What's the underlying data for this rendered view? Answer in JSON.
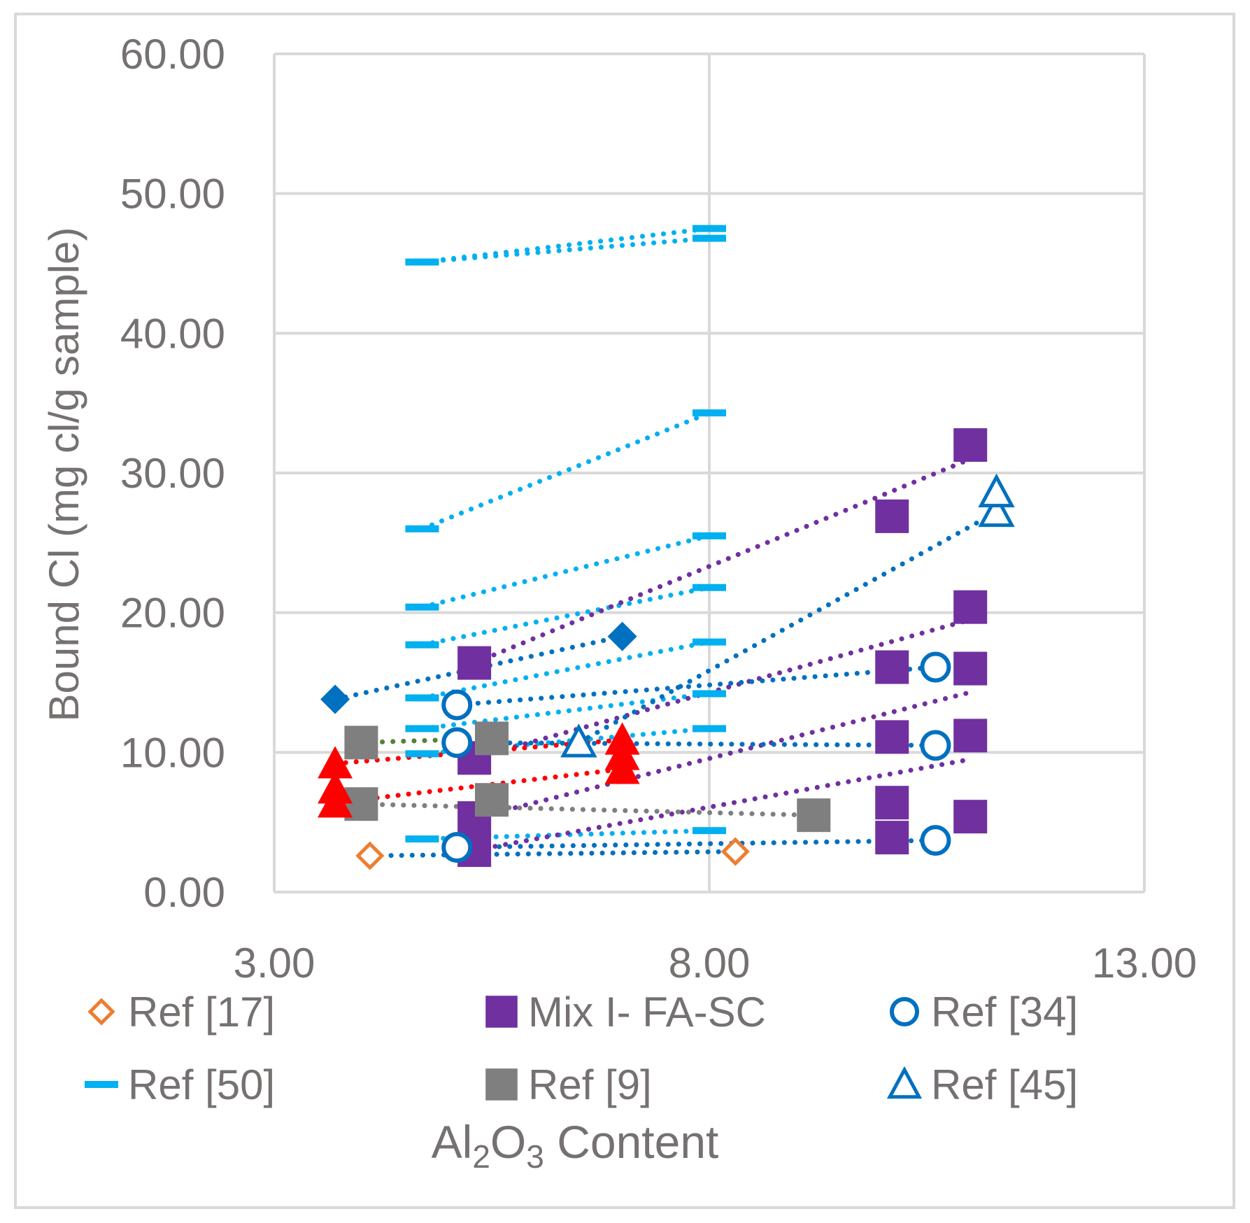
{
  "chart_data": {
    "type": "scatter",
    "title": "",
    "xlabel": "Al2O3 Content",
    "xlabel_parts": {
      "base1": "Al",
      "sub1": "2",
      "base2": "O",
      "sub2": "3",
      "rest": " Content"
    },
    "ylabel": "Bound Cl (mg cl/g sample)",
    "xlim": [
      3,
      13
    ],
    "ylim": [
      0,
      60
    ],
    "xticks": [
      3,
      8,
      13
    ],
    "xtick_labels": [
      "3.00",
      "8.00",
      "13.00"
    ],
    "yticks": [
      0,
      10,
      20,
      30,
      40,
      50,
      60
    ],
    "ytick_labels": [
      "0.00",
      "10.00",
      "20.00",
      "30.00",
      "40.00",
      "50.00",
      "60.00"
    ],
    "grid": true,
    "legend_position": "bottom",
    "legend": [
      {
        "label": "Ref [17]",
        "marker": "diamond-open",
        "color": "#ED7D31"
      },
      {
        "label": "Mix I- FA-SC",
        "marker": "square",
        "color": "#7030A0"
      },
      {
        "label": "Ref [34]",
        "marker": "circle-open",
        "color": "#0070C0"
      },
      {
        "label": "Ref [50]",
        "marker": "dash",
        "color": "#00B0F0"
      },
      {
        "label": "Ref [9]",
        "marker": "square",
        "color": "#7F7F7F"
      },
      {
        "label": "Ref [45]",
        "marker": "triangle-open",
        "color": "#0070C0"
      }
    ],
    "series": [
      {
        "name": "Ref [17]",
        "marker": "diamond-open",
        "color": "#ED7D31",
        "points": [
          {
            "x": 4.1,
            "y": 2.6
          },
          {
            "x": 8.3,
            "y": 2.9
          }
        ]
      },
      {
        "name": "Mix I- FA-SC",
        "marker": "square",
        "color": "#7030A0",
        "points": [
          {
            "x": 5.3,
            "y": 3.0
          },
          {
            "x": 5.3,
            "y": 5.3
          },
          {
            "x": 5.3,
            "y": 9.6
          },
          {
            "x": 5.3,
            "y": 16.4
          },
          {
            "x": 10.1,
            "y": 3.9
          },
          {
            "x": 10.1,
            "y": 6.4
          },
          {
            "x": 10.1,
            "y": 11.1
          },
          {
            "x": 10.1,
            "y": 16.1
          },
          {
            "x": 10.1,
            "y": 26.9
          },
          {
            "x": 11.0,
            "y": 5.4
          },
          {
            "x": 11.0,
            "y": 11.2
          },
          {
            "x": 11.0,
            "y": 16.0
          },
          {
            "x": 11.0,
            "y": 20.4
          },
          {
            "x": 11.0,
            "y": 32.0
          }
        ]
      },
      {
        "name": "Ref [34]",
        "marker": "circle-open",
        "color": "#0070C0",
        "points": [
          {
            "x": 5.1,
            "y": 3.2
          },
          {
            "x": 5.1,
            "y": 10.7
          },
          {
            "x": 5.1,
            "y": 13.4
          },
          {
            "x": 10.6,
            "y": 3.7
          },
          {
            "x": 10.6,
            "y": 10.5
          },
          {
            "x": 10.6,
            "y": 16.1
          }
        ]
      },
      {
        "name": "Ref [50]",
        "marker": "dash",
        "color": "#00B0F0",
        "points": [
          {
            "x": 4.7,
            "y": 3.8
          },
          {
            "x": 4.7,
            "y": 9.9
          },
          {
            "x": 4.7,
            "y": 11.7
          },
          {
            "x": 4.7,
            "y": 13.9
          },
          {
            "x": 4.7,
            "y": 17.7
          },
          {
            "x": 4.7,
            "y": 20.4
          },
          {
            "x": 4.7,
            "y": 26.0
          },
          {
            "x": 4.7,
            "y": 45.1
          },
          {
            "x": 8.0,
            "y": 4.4
          },
          {
            "x": 8.0,
            "y": 11.7
          },
          {
            "x": 8.0,
            "y": 14.2
          },
          {
            "x": 8.0,
            "y": 17.9
          },
          {
            "x": 8.0,
            "y": 21.8
          },
          {
            "x": 8.0,
            "y": 25.5
          },
          {
            "x": 8.0,
            "y": 34.3
          },
          {
            "x": 8.0,
            "y": 46.8
          },
          {
            "x": 8.0,
            "y": 47.5
          }
        ]
      },
      {
        "name": "Ref [9]",
        "marker": "square",
        "color": "#7F7F7F",
        "points": [
          {
            "x": 4.0,
            "y": 6.3
          },
          {
            "x": 4.0,
            "y": 10.7
          },
          {
            "x": 5.5,
            "y": 6.6
          },
          {
            "x": 5.5,
            "y": 11.0
          },
          {
            "x": 9.2,
            "y": 5.5
          }
        ]
      },
      {
        "name": "Ref [45]",
        "marker": "triangle-open",
        "color": "#0070C0",
        "points": [
          {
            "x": 6.5,
            "y": 10.7
          },
          {
            "x": 11.3,
            "y": 27.2
          },
          {
            "x": 11.3,
            "y": 28.6
          }
        ]
      },
      {
        "name": "Unlabeled filled diamonds",
        "marker": "diamond-filled",
        "color": "#0070C0",
        "points": [
          {
            "x": 3.7,
            "y": 13.8
          },
          {
            "x": 7.0,
            "y": 18.3
          }
        ]
      },
      {
        "name": "Unlabeled filled triangles",
        "marker": "triangle-filled",
        "color": "#FF0000",
        "points": [
          {
            "x": 3.7,
            "y": 6.4
          },
          {
            "x": 3.7,
            "y": 7.4
          },
          {
            "x": 3.7,
            "y": 9.2
          },
          {
            "x": 7.0,
            "y": 8.8
          },
          {
            "x": 7.0,
            "y": 9.8
          },
          {
            "x": 7.0,
            "y": 10.9
          }
        ]
      }
    ],
    "trendlines": [
      {
        "color": "#00B0F0",
        "from": {
          "x": 4.7,
          "y": 45.1
        },
        "to": {
          "x": 8.0,
          "y": 47.5
        }
      },
      {
        "color": "#00B0F0",
        "from": {
          "x": 4.7,
          "y": 45.1
        },
        "to": {
          "x": 8.0,
          "y": 46.8
        }
      },
      {
        "color": "#00B0F0",
        "from": {
          "x": 4.7,
          "y": 26.0
        },
        "to": {
          "x": 8.0,
          "y": 34.3
        }
      },
      {
        "color": "#00B0F0",
        "from": {
          "x": 4.7,
          "y": 20.4
        },
        "to": {
          "x": 8.0,
          "y": 25.5
        }
      },
      {
        "color": "#00B0F0",
        "from": {
          "x": 4.7,
          "y": 17.7
        },
        "to": {
          "x": 8.0,
          "y": 21.8
        }
      },
      {
        "color": "#00B0F0",
        "from": {
          "x": 4.7,
          "y": 13.9
        },
        "to": {
          "x": 8.0,
          "y": 17.9
        }
      },
      {
        "color": "#00B0F0",
        "from": {
          "x": 4.7,
          "y": 11.7
        },
        "to": {
          "x": 8.0,
          "y": 14.2
        }
      },
      {
        "color": "#00B0F0",
        "from": {
          "x": 4.7,
          "y": 9.9
        },
        "to": {
          "x": 8.0,
          "y": 11.7
        }
      },
      {
        "color": "#00B0F0",
        "from": {
          "x": 4.7,
          "y": 3.8
        },
        "to": {
          "x": 8.0,
          "y": 4.4
        }
      },
      {
        "color": "#7030A0",
        "from": {
          "x": 5.3,
          "y": 16.4
        },
        "to": {
          "x": 11.0,
          "y": 31.0
        }
      },
      {
        "color": "#7030A0",
        "from": {
          "x": 5.3,
          "y": 9.6
        },
        "to": {
          "x": 11.0,
          "y": 19.5
        }
      },
      {
        "color": "#7030A0",
        "from": {
          "x": 5.3,
          "y": 5.3
        },
        "to": {
          "x": 11.0,
          "y": 14.3
        }
      },
      {
        "color": "#7030A0",
        "from": {
          "x": 5.3,
          "y": 3.0
        },
        "to": {
          "x": 11.0,
          "y": 9.5
        }
      },
      {
        "color": "#0070C0",
        "from": {
          "x": 3.7,
          "y": 13.8
        },
        "to": {
          "x": 7.0,
          "y": 18.3
        }
      },
      {
        "color": "#0070C0",
        "from": {
          "x": 5.1,
          "y": 13.4
        },
        "to": {
          "x": 10.6,
          "y": 16.1
        }
      },
      {
        "color": "#0070C0",
        "from": {
          "x": 5.1,
          "y": 10.7
        },
        "to": {
          "x": 10.6,
          "y": 10.5
        }
      },
      {
        "color": "#0070C0",
        "from": {
          "x": 5.1,
          "y": 3.2
        },
        "to": {
          "x": 10.6,
          "y": 3.7
        }
      },
      {
        "color": "#0070C0",
        "from": {
          "x": 6.5,
          "y": 10.7
        },
        "to": {
          "x": 11.3,
          "y": 27.2
        }
      },
      {
        "color": "#0070C0",
        "from": {
          "x": 4.1,
          "y": 2.6
        },
        "to": {
          "x": 8.3,
          "y": 2.9
        }
      },
      {
        "color": "#7F7F7F",
        "from": {
          "x": 4.0,
          "y": 6.3
        },
        "to": {
          "x": 9.2,
          "y": 5.5
        }
      },
      {
        "color": "#548235",
        "from": {
          "x": 4.0,
          "y": 10.7
        },
        "to": {
          "x": 5.5,
          "y": 11.0
        }
      },
      {
        "color": "#FF0000",
        "from": {
          "x": 3.7,
          "y": 9.2
        },
        "to": {
          "x": 7.0,
          "y": 10.9
        }
      },
      {
        "color": "#FF0000",
        "from": {
          "x": 3.7,
          "y": 6.4
        },
        "to": {
          "x": 7.0,
          "y": 8.8
        }
      }
    ]
  }
}
